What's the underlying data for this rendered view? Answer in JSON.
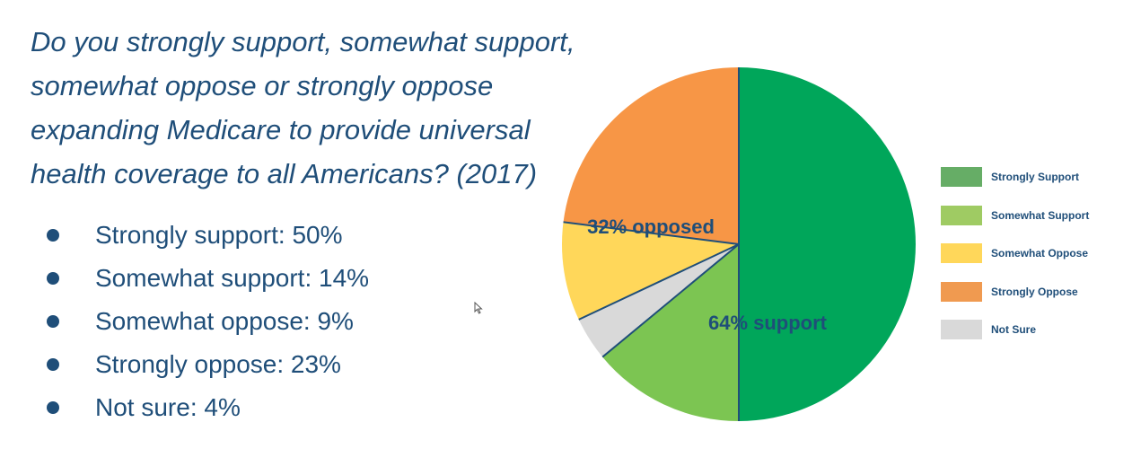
{
  "question": "Do you strongly support, somewhat support, somewhat oppose or strongly oppose expanding Medicare to provide universal health coverage to all Americans? (2017)",
  "bullets": [
    "Strongly support: 50%",
    "Somewhat support: 14%",
    "Somewhat oppose: 9%",
    "Strongly oppose: 23%",
    "Not sure: 4%"
  ],
  "chart_data": {
    "type": "pie",
    "title": "",
    "start_angle_deg": 0,
    "direction": "clockwise",
    "slices": [
      {
        "label": "Strongly Support",
        "value": 50,
        "color": "#00a65a"
      },
      {
        "label": "Somewhat Support",
        "value": 14,
        "color": "#7cc552"
      },
      {
        "label": "Not Sure",
        "value": 4,
        "color": "#d9d9d9"
      },
      {
        "label": "Somewhat Oppose",
        "value": 9,
        "color": "#ffd75a"
      },
      {
        "label": "Strongly Oppose",
        "value": 23,
        "color": "#f79646"
      }
    ],
    "annotations": [
      {
        "text": "64% support"
      },
      {
        "text": "32% opposed"
      }
    ],
    "legend": {
      "placement": "right",
      "entries": [
        {
          "label": "Strongly Support",
          "color": "#66ad66"
        },
        {
          "label": "Somewhat Support",
          "color": "#9fcb63"
        },
        {
          "label": "Somewhat Oppose",
          "color": "#ffd75a"
        },
        {
          "label": "Strongly Oppose",
          "color": "#f09a50"
        },
        {
          "label": "Not Sure",
          "color": "#d9d9d9"
        }
      ]
    },
    "separator_color": "#1f4e79",
    "annotation_color": "#1f4e79"
  }
}
